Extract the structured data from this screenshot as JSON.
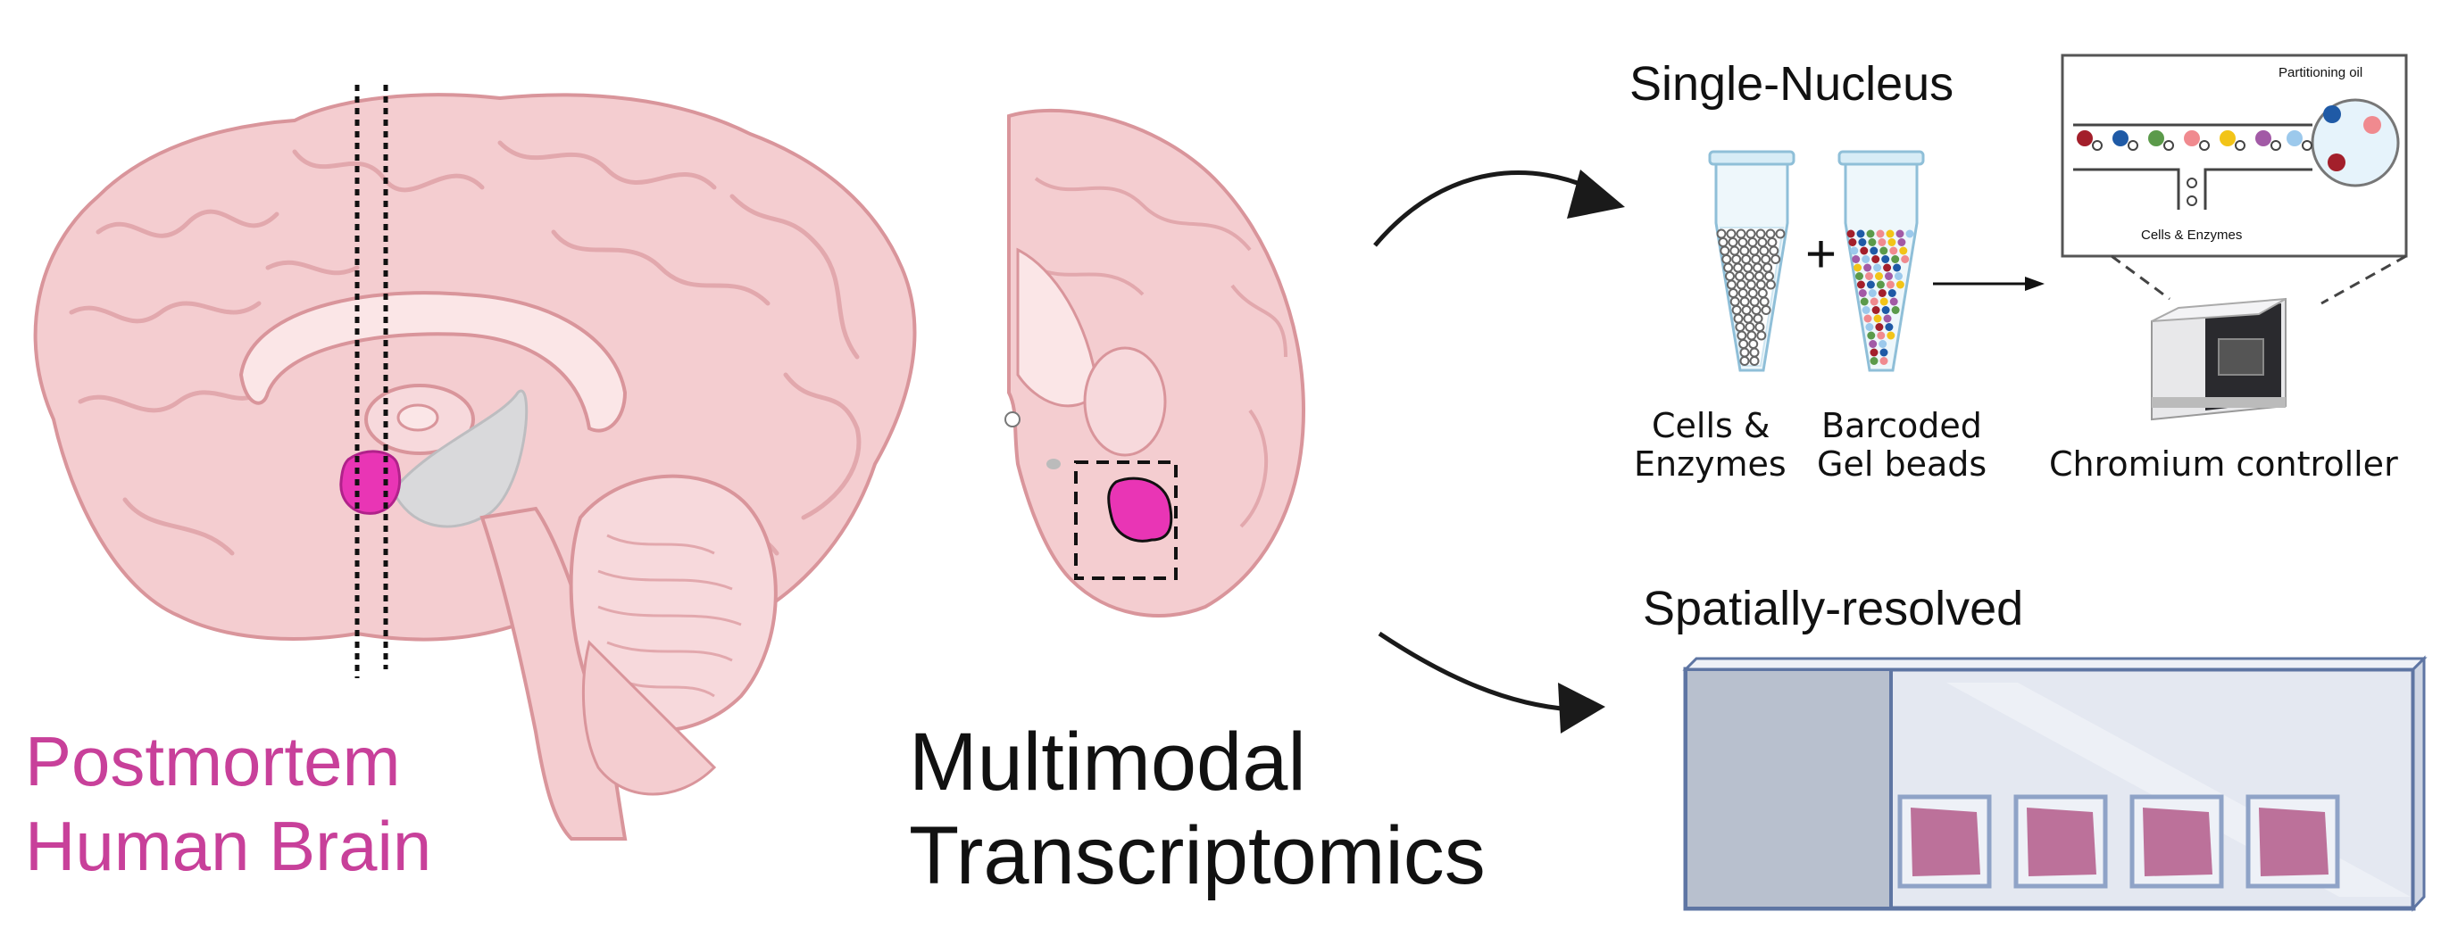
{
  "brain_label": {
    "line1": "Postmortem",
    "line2": "Human Brain",
    "color": "#c8409a"
  },
  "center_label": {
    "line1": "Multimodal",
    "line2": "Transcriptomics"
  },
  "single_nucleus": {
    "title": "Single-Nucleus",
    "tube1_label_line1": "Cells &",
    "tube1_label_line2": "Enzymes",
    "tube2_label_line1": "Barcoded",
    "tube2_label_line2": "Gel beads",
    "plus": "+",
    "controller_label": "Chromium controller",
    "inset_partitioning": "Partitioning oil",
    "inset_cells": "Cells & Enzymes"
  },
  "spatial": {
    "title": "Spatially-resolved"
  },
  "colors": {
    "brain_pink": "#f4cdd0",
    "brain_outline": "#d9959b",
    "highlight_magenta": "#e935b5",
    "slide_blue": "#8fa3c7",
    "tissue": "#b35a8a",
    "bead_colors": [
      "#a31f2b",
      "#1f5aa6",
      "#5b9a4a",
      "#f08a8f",
      "#f2c418",
      "#a25aa6",
      "#9cc9ec"
    ]
  }
}
